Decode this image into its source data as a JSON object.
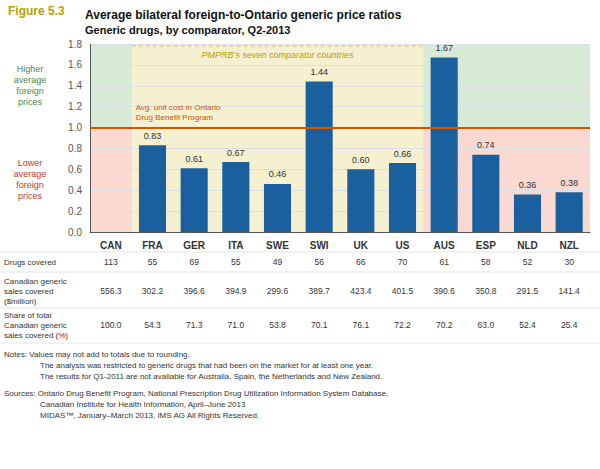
{
  "chart_data": {
    "type": "bar",
    "figure_label": {
      "text": "Figure 5.3",
      "color": "#b8a000"
    },
    "title": "Average bilateral foreign-to-Ontario generic price ratios",
    "subtitle": "Generic drugs, by comparator, Q2-2013",
    "categories": [
      "CAN",
      "FRA",
      "GER",
      "ITA",
      "SWE",
      "SWI",
      "UK",
      "US",
      "AUS",
      "ESP",
      "NLD",
      "NZL"
    ],
    "values": [
      null,
      0.83,
      0.61,
      0.67,
      0.46,
      1.44,
      0.6,
      0.66,
      1.67,
      0.74,
      0.36,
      0.38
    ],
    "value_labels": [
      null,
      "0.83",
      "0.61",
      "0.67",
      "0.46",
      "1.44",
      "0.60",
      "0.66",
      "1.67",
      "0.74",
      "0.36",
      "0.38"
    ],
    "color": "#1a5f9e",
    "data_labels": true,
    "ylim": [
      0,
      1.8
    ],
    "yticks": [
      {
        "value": 0,
        "label": "0.0"
      },
      0.2,
      0.4,
      0.6,
      0.8,
      {
        "value": 1,
        "label": "1.0"
      },
      1.2,
      1.4,
      1.6,
      1.8
    ],
    "grid": true,
    "bands": [
      {
        "y": [
          1,
          1.8
        ],
        "color": "#d6ead6",
        "label": "Higher\naverage\nforeign\nprices",
        "label_color": "#4a8a4a"
      },
      {
        "y": [
          0,
          1
        ],
        "color": "#fad9d0",
        "label": "Lower\naverage\nforeign\nprices",
        "label_color": "#c0392b"
      }
    ],
    "group": {
      "from": "FRA",
      "to": "US",
      "color": "#f5f0d0",
      "label": "PMPRB’s seven comparator countries",
      "label_color": "#b8a000"
    },
    "reference_line": {
      "y": 1,
      "color": "#d45500",
      "label": "Avg. unit cost in Ontario\nDrug Benefit Program"
    },
    "table": [
      {
        "label": "Drugs covered",
        "values": [
          113,
          55,
          69,
          55,
          49,
          56,
          66,
          70,
          61,
          58,
          52,
          30
        ]
      },
      {
        "label": "Canadian generic\nsales covered\n($million)",
        "values": [
          556.3,
          302.2,
          396.6,
          394.9,
          299.6,
          389.7,
          423.4,
          401.5,
          390.6,
          350.8,
          291.5,
          141.4
        ]
      },
      {
        "label": "Share of total\nCanadian generic\nsales covered (%)",
        "values": [
          100,
          54.3,
          71.3,
          71.0,
          53.8,
          70.1,
          76.1,
          72.2,
          70.2,
          63.0,
          52.4,
          25.4
        ],
        "value_labels": [
          "100.0",
          "54.3",
          "71.3",
          "71.0",
          "53.8",
          "70.1",
          "76.1",
          "72.2",
          "70.2",
          "63.0",
          "52.4",
          "25.4"
        ]
      }
    ],
    "notes": [
      [
        "Notes: Values may not add to totals due to rounding.",
        "The analysis was restricted to generic drugs that had been on the market for at least one year.",
        "The results for Q1-2011 are not available for Australia, Spain, the Netherlands and New Zealand."
      ],
      [
        "Sources: Ontario Drug Benefit Program, National Prescription Drug Utilization Information System Database,",
        "Canadian Institute for Health Information, April–June 2013",
        "MIDAS™, January–March 2013, IMS AG All Rights Reserved."
      ]
    ]
  }
}
